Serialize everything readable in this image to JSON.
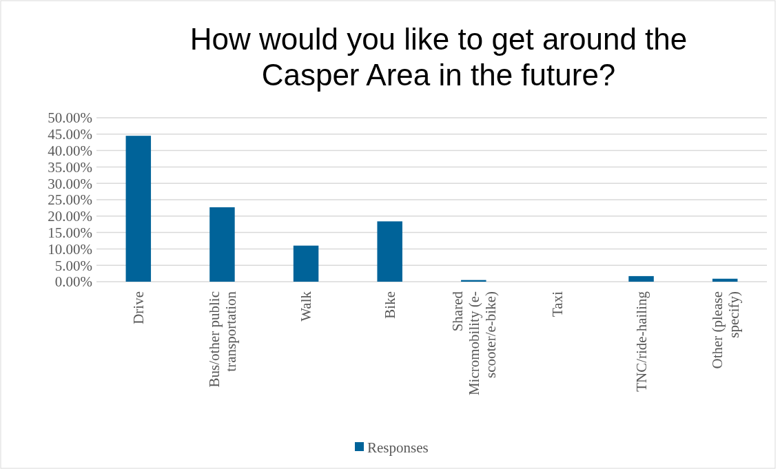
{
  "chart_data": {
    "type": "bar",
    "title": "How would you like to get around the Casper Area in the future?",
    "categories": [
      "Drive",
      "Bus/other public transportation",
      "Walk",
      "Bike",
      "Shared Micromobility (e-scooter/e-bike)",
      "Taxi",
      "TNC/ride-hailing",
      "Other (please specify)"
    ],
    "series": [
      {
        "name": "Responses",
        "color": "#006399",
        "values": [
          44.5,
          22.7,
          11.0,
          18.4,
          0.5,
          0,
          1.7,
          0.9
        ]
      }
    ],
    "ylim": [
      0,
      50
    ],
    "yticks": [
      {
        "value": 0,
        "label": "0.00%"
      },
      {
        "value": 5,
        "label": "5.00%"
      },
      {
        "value": 10,
        "label": "10.00%"
      },
      {
        "value": 15,
        "label": "15.00%"
      },
      {
        "value": 20,
        "label": "20.00%"
      },
      {
        "value": 25,
        "label": "25.00%"
      },
      {
        "value": 30,
        "label": "30.00%"
      },
      {
        "value": 35,
        "label": "35.00%"
      },
      {
        "value": 40,
        "label": "40.00%"
      },
      {
        "value": 45,
        "label": "45.00%"
      },
      {
        "value": 50,
        "label": "50.00%"
      }
    ],
    "grid": "y",
    "legend": "bottom"
  }
}
